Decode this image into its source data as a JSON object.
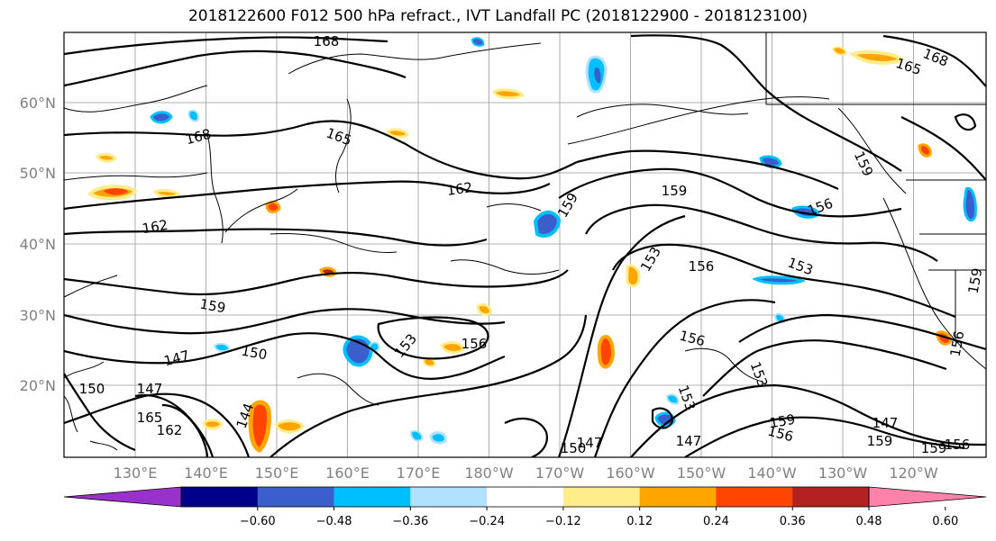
{
  "title": "2018122600 F012 500 hPa refract., IVT Landfall PC (2018122900 - 2018123100)",
  "lat_labels": [
    "60°N",
    "50°N",
    "40°N",
    "30°N",
    "20°N"
  ],
  "lon_labels": [
    "130°E",
    "140°E",
    "150°E",
    "160°E",
    "170°E",
    "180°W",
    "170°W",
    "160°W",
    "150°W",
    "140°W",
    "130°W",
    "120°W"
  ],
  "colorbar": {
    "colors": [
      "#9932cc",
      "#00008b",
      "#3a5fcd",
      "#00bfff",
      "#b0e2ff",
      "#ffffff",
      "#ffec8b",
      "#ffa500",
      "#ff4500",
      "#b22222",
      "#ff82ab"
    ],
    "ticks": [
      "−0.60",
      "−0.48",
      "−0.36",
      "−0.24",
      "−0.12",
      "0.12",
      "0.24",
      "0.36",
      "0.48",
      "0.60"
    ]
  },
  "contour_labels": [
    {
      "text": "168"
    },
    {
      "text": "165"
    },
    {
      "text": "168"
    },
    {
      "text": "165"
    },
    {
      "text": "168"
    },
    {
      "text": "162"
    },
    {
      "text": "162"
    },
    {
      "text": "159"
    },
    {
      "text": "159"
    },
    {
      "text": "159"
    },
    {
      "text": "156"
    },
    {
      "text": "153"
    },
    {
      "text": "156"
    },
    {
      "text": "153"
    },
    {
      "text": "159"
    },
    {
      "text": "159"
    },
    {
      "text": "150"
    },
    {
      "text": "147"
    },
    {
      "text": "150"
    },
    {
      "text": "147"
    },
    {
      "text": "153"
    },
    {
      "text": "156"
    },
    {
      "text": "156"
    },
    {
      "text": "153"
    },
    {
      "text": "153"
    },
    {
      "text": "159"
    },
    {
      "text": "156"
    },
    {
      "text": "147"
    },
    {
      "text": "159"
    },
    {
      "text": "159"
    },
    {
      "text": "156"
    },
    {
      "text": "147"
    },
    {
      "text": "150"
    },
    {
      "text": "147"
    },
    {
      "text": "162"
    },
    {
      "text": "165"
    },
    {
      "text": "144"
    },
    {
      "text": "156"
    }
  ]
}
